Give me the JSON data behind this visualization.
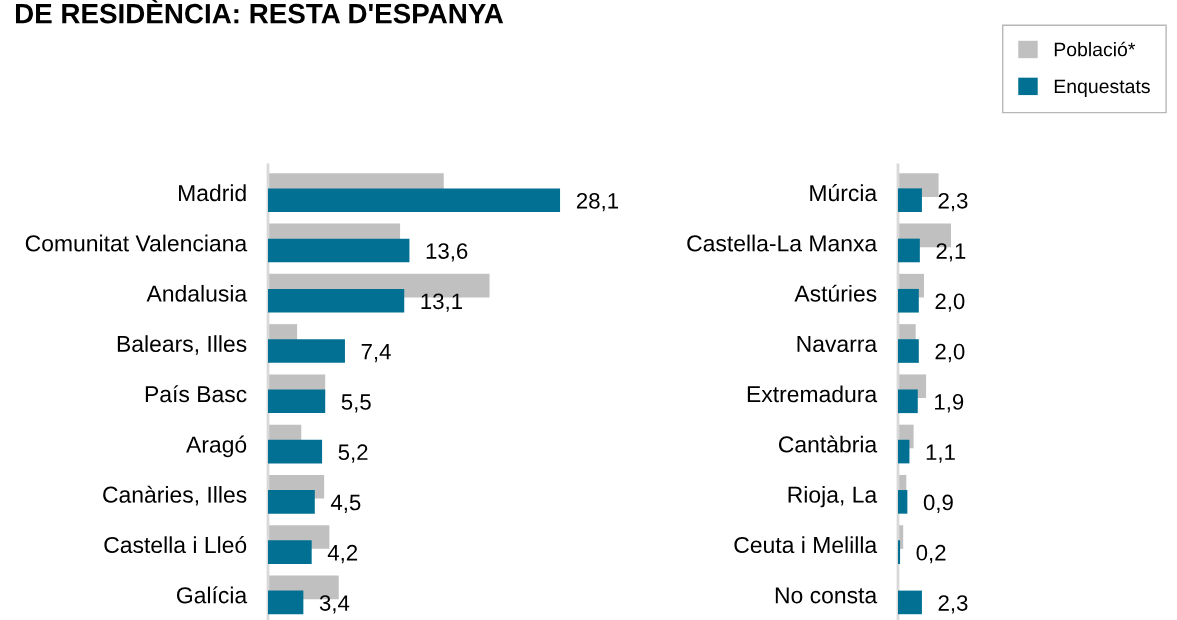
{
  "chart_data": [
    {
      "type": "bar",
      "orientation": "horizontal",
      "title": "DE RESIDÈNCIA: RESTA D'ESPANYA",
      "categories": [
        "Madrid",
        "Comunitat Valenciana",
        "Andalusia",
        "Balears, Illes",
        "País Basc",
        "Aragó",
        "Canàries, Illes",
        "Castella i Lleó",
        "Galícia"
      ],
      "tick_labels": "y",
      "grid": false,
      "legend": "top right",
      "series": [
        {
          "name": "Població*",
          "color": "#c0c0c0",
          "values": [
            16.9,
            12.7,
            21.3,
            2.8,
            5.5,
            3.2,
            5.4,
            5.9,
            6.8
          ]
        },
        {
          "name": "Enquestats",
          "color": "#017092",
          "values": [
            28.1,
            13.6,
            13.1,
            7.4,
            5.5,
            5.2,
            4.5,
            4.2,
            3.4
          ],
          "value_labels": [
            "28,1",
            "13,6",
            "13,1",
            "7,4",
            "5,5",
            "5,2",
            "4,5",
            "4,2",
            "3,4"
          ]
        }
      ]
    },
    {
      "type": "bar",
      "orientation": "horizontal",
      "categories": [
        "Múrcia",
        "Castella-La Manxa",
        "Astúries",
        "Navarra",
        "Extremadura",
        "Cantàbria",
        "Rioja, La",
        "Ceuta i Melilla",
        "No consta"
      ],
      "tick_labels": "y",
      "grid": false,
      "series": [
        {
          "color": "#c0c0c0",
          "values": [
            3.9,
            5.1,
            2.5,
            1.7,
            2.7,
            1.5,
            0.8,
            0.5,
            null
          ]
        },
        {
          "color": "#017092",
          "values": [
            2.3,
            2.1,
            2.0,
            2.0,
            1.9,
            1.1,
            0.9,
            0.2,
            2.3
          ],
          "value_labels": [
            "2,3",
            "2,1",
            "2,0",
            "2,0",
            "1,9",
            "1,1",
            "0,9",
            "0,2",
            "2,3"
          ]
        }
      ]
    }
  ]
}
